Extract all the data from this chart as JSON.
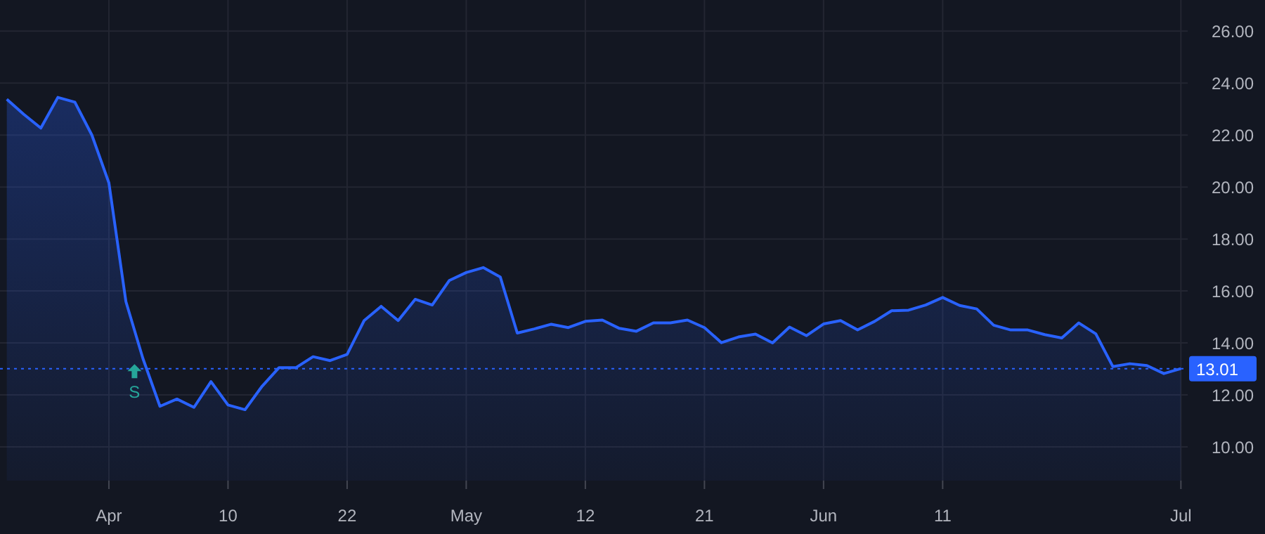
{
  "chart_data": {
    "type": "area",
    "color": "#2962ff",
    "categories": [
      null,
      null,
      null,
      null,
      null,
      null,
      "Apr",
      null,
      null,
      null,
      null,
      null,
      null,
      "10",
      null,
      null,
      null,
      null,
      null,
      null,
      "22",
      null,
      null,
      null,
      null,
      null,
      null,
      "May",
      null,
      null,
      null,
      null,
      null,
      null,
      "12",
      null,
      null,
      null,
      null,
      null,
      null,
      "21",
      null,
      null,
      null,
      null,
      null,
      null,
      "Jun",
      null,
      null,
      null,
      null,
      null,
      null,
      "11",
      null,
      null,
      null,
      null,
      null,
      null,
      null,
      null,
      null,
      null,
      null,
      null,
      null,
      "Jul"
    ],
    "values": [
      23.38,
      22.8,
      22.27,
      23.45,
      23.27,
      22.0,
      20.16,
      15.59,
      13.4,
      11.56,
      11.84,
      11.52,
      12.51,
      11.61,
      11.43,
      12.33,
      13.05,
      13.05,
      13.47,
      13.32,
      13.56,
      14.86,
      15.41,
      14.86,
      15.68,
      15.46,
      16.4,
      16.71,
      16.9,
      16.54,
      14.38,
      14.54,
      14.72,
      14.59,
      14.83,
      14.88,
      14.56,
      14.45,
      14.77,
      14.77,
      14.88,
      14.59,
      14.01,
      14.23,
      14.34,
      14.0,
      14.61,
      14.28,
      14.73,
      14.86,
      14.5,
      14.83,
      15.24,
      15.26,
      15.46,
      15.75,
      15.44,
      15.31,
      14.68,
      14.5,
      14.5,
      14.32,
      14.19,
      14.77,
      14.35,
      13.09,
      13.2,
      13.13,
      12.82,
      13.01
    ],
    "ylim": [
      8.7,
      27.2
    ],
    "yticks": [
      {
        "value": 10,
        "label": "10.00"
      },
      {
        "value": 12,
        "label": "12.00"
      },
      {
        "value": 14,
        "label": "14.00"
      },
      {
        "value": 16,
        "label": "16.00"
      },
      {
        "value": 18,
        "label": "18.00"
      },
      {
        "value": 20,
        "label": "20.00"
      },
      {
        "value": 22,
        "label": "22.00"
      },
      {
        "value": 24,
        "label": "24.00"
      },
      {
        "value": 26,
        "label": "26.00"
      }
    ],
    "grid": true,
    "marker": "none",
    "ref_lines": [
      {
        "axis": "y",
        "value": 13.01,
        "label": "13.01",
        "color": "#2962ff",
        "line_style": "dotted"
      }
    ],
    "annotations": [
      {
        "text": "S",
        "y": 13.4
      }
    ]
  }
}
